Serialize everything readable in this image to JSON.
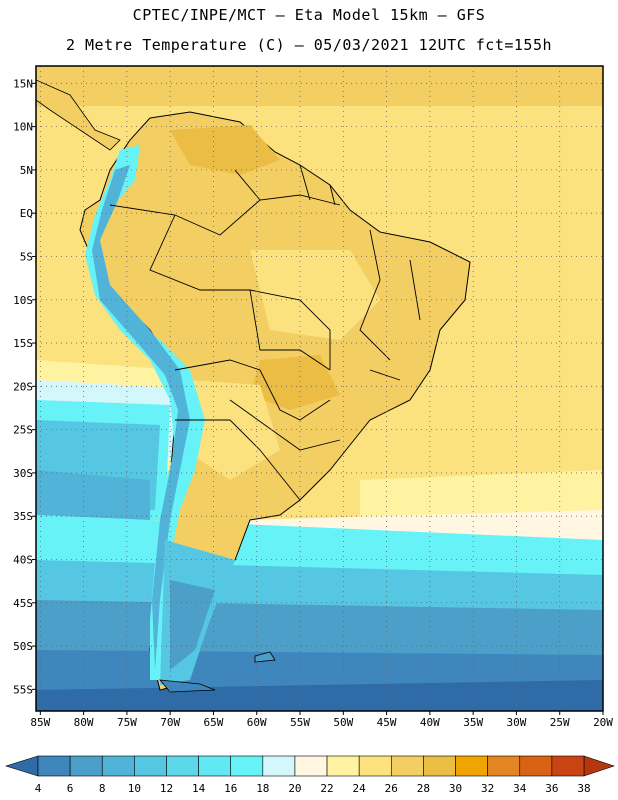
{
  "title": {
    "line1": "CPTEC/INPE/MCT –  Eta Model 15km – GFS",
    "line2": "2 Metre Temperature (C) – 05/03/2021 12UTC fct=155h"
  },
  "map": {
    "lat_labels": [
      "15N",
      "10N",
      "5N",
      "EQ",
      "5S",
      "10S",
      "15S",
      "20S",
      "25S",
      "30S",
      "35S",
      "40S",
      "45S",
      "50S",
      "55S"
    ],
    "lon_labels": [
      "85W",
      "80W",
      "75W",
      "70W",
      "65W",
      "60W",
      "55W",
      "50W",
      "45W",
      "40W",
      "35W",
      "30W",
      "25W",
      "20W"
    ],
    "gridlines": "dotted",
    "lat_range": [
      -57.5,
      17
    ],
    "lon_range": [
      -85.5,
      -20
    ]
  },
  "colorbar": {
    "levels": [
      "4",
      "6",
      "8",
      "10",
      "12",
      "14",
      "16",
      "18",
      "20",
      "22",
      "24",
      "26",
      "28",
      "30",
      "32",
      "34",
      "36",
      "38"
    ],
    "colors": [
      "#2f6ca7",
      "#3f86bd",
      "#4b9fc9",
      "#52b3d8",
      "#55c7e2",
      "#5dd8ea",
      "#61e8f2",
      "#67f2f7",
      "#d4f7fb",
      "#fff7e2",
      "#fff2a0",
      "#fbe27e",
      "#f3cf63",
      "#ebbd44",
      "#f0a400",
      "#e48523",
      "#d96214",
      "#c84513",
      "#b5370e"
    ]
  }
}
